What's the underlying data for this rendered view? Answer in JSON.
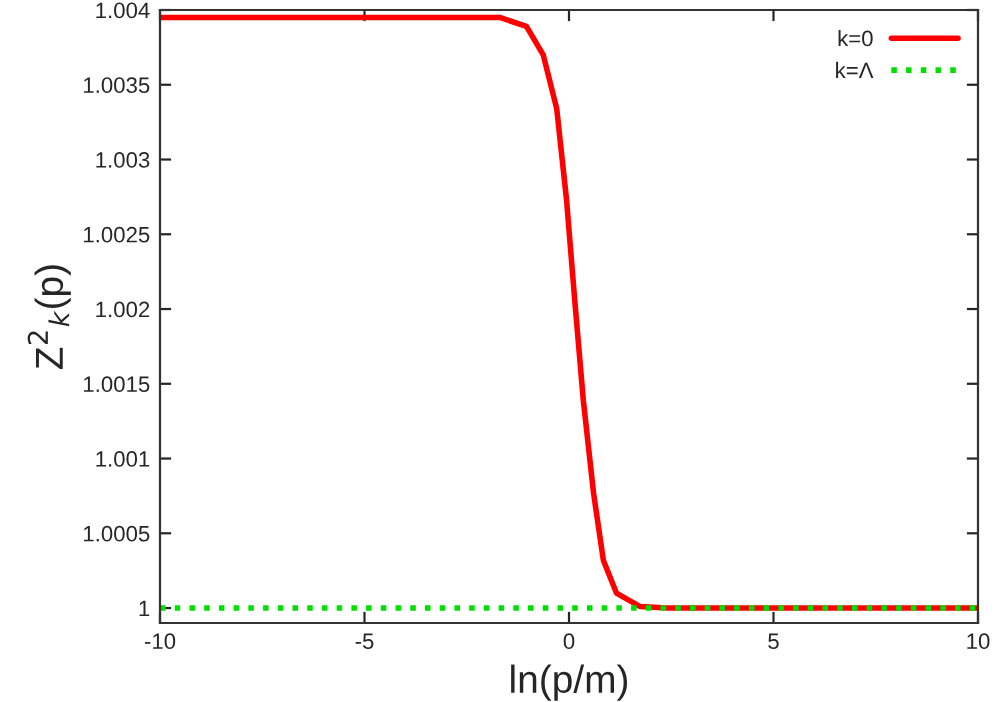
{
  "chart_data": {
    "type": "line",
    "xlabel": "ln(p/m)",
    "ylabel": "Z$^{2}$$_{k}$(p)",
    "xlim": [
      -10,
      10
    ],
    "xticks": [
      -10,
      -5,
      0,
      5,
      10
    ],
    "ylim": [
      0.9999,
      1.004
    ],
    "yticks": [
      1,
      1.0005,
      1.001,
      1.0015,
      1.002,
      1.0025,
      1.003,
      1.0035,
      1.004
    ],
    "grid": false,
    "legend": "top right",
    "series": [
      {
        "name": "k=0",
        "color": "#ff0000",
        "line_style": "solid",
        "x": [
          -10,
          -1.69,
          -1.04,
          -0.63,
          -0.3,
          -0.06,
          0.14,
          0.35,
          0.6,
          0.84,
          1.16,
          1.74,
          2.4,
          10
        ],
        "values": [
          1.00395,
          1.00395,
          1.00389,
          1.0037,
          1.00334,
          1.00273,
          1.00206,
          1.00139,
          1.00077,
          1.00032,
          1.0001,
          1.00001,
          1,
          1
        ]
      },
      {
        "name": "k=Λ",
        "color": "#00e000",
        "line_style": "dotted",
        "x": [
          -10,
          10
        ],
        "values": [
          1,
          1
        ]
      }
    ]
  }
}
